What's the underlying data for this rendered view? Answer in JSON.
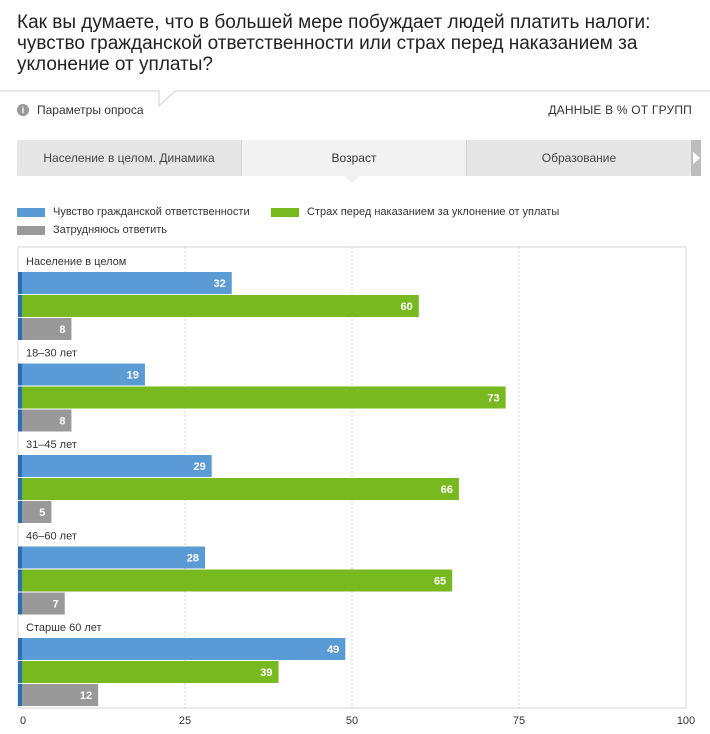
{
  "title": "Как вы думаете, что в большей мере побуждает людей платить налоги: чувство гражданской ответственности или страх перед наказанием за уклонение от уплаты?",
  "params_label": "Параметры опроса",
  "units_label": "ДАННЫЕ В % ОТ ГРУПП",
  "tabs": [
    {
      "label": "Население в целом. Динамика"
    },
    {
      "label": "Возраст"
    },
    {
      "label": "Образование"
    }
  ],
  "colors": {
    "blue": "#5b9bd5",
    "green": "#77b91e",
    "gray": "#999999",
    "accent_bar": "#2d6db3"
  },
  "chart_data": {
    "type": "bar",
    "orientation": "horizontal",
    "categories": [
      "Население в целом",
      "18–30 лет",
      "31–45 лет",
      "46–60 лет",
      "Старше 60 лет"
    ],
    "series": [
      {
        "name": "Чувство гражданской ответственности",
        "color": "#5b9bd5",
        "values": [
          32,
          19,
          29,
          28,
          49
        ]
      },
      {
        "name": "Страх перед наказанием за уклонение от уплаты",
        "color": "#77b91e",
        "values": [
          60,
          73,
          66,
          65,
          39
        ]
      },
      {
        "name": "Затрудняюсь ответить",
        "color": "#999999",
        "values": [
          8,
          8,
          5,
          7,
          12
        ]
      }
    ],
    "xlim": [
      0,
      100
    ],
    "xticks": [
      0,
      25,
      50,
      75,
      100
    ],
    "grid": true,
    "legend_position": "top-left"
  }
}
